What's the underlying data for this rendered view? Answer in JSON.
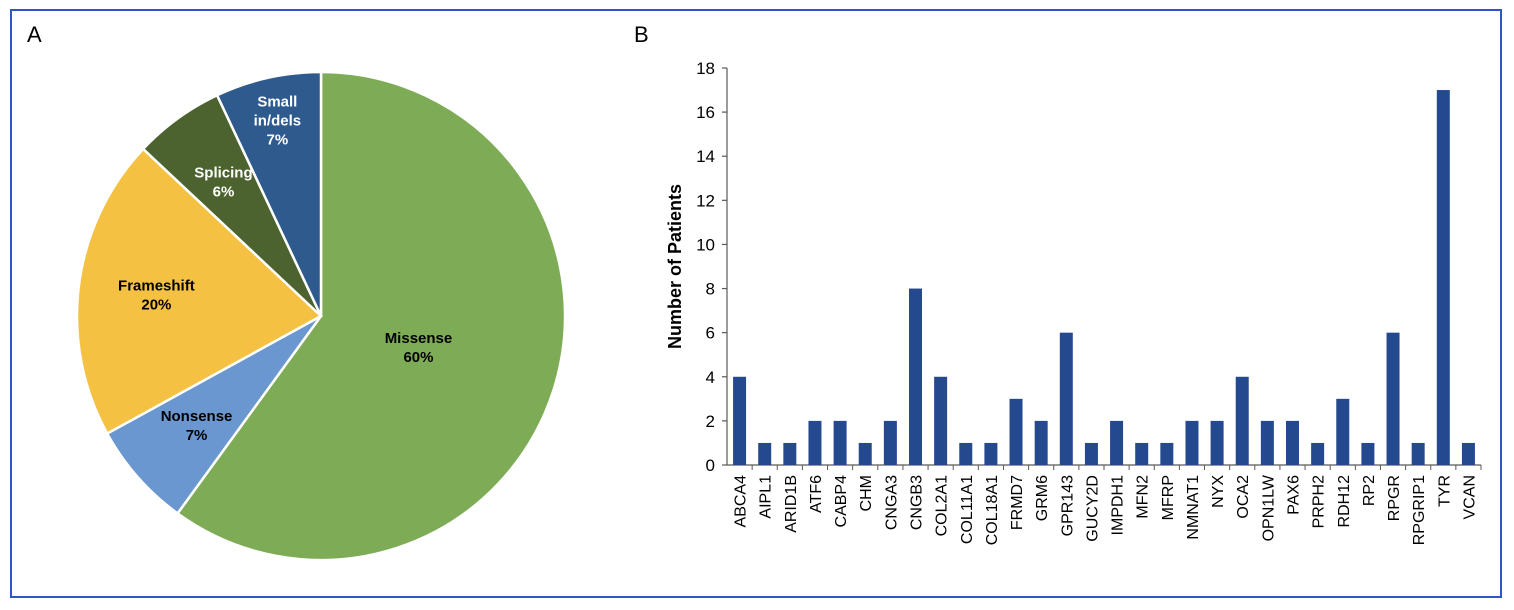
{
  "panels": {
    "a_label": "A",
    "b_label": "B"
  },
  "chart_data": [
    {
      "type": "pie",
      "slices": [
        {
          "label_lines": [
            "Missense",
            "60%"
          ],
          "value": 60,
          "color": "#7eab55",
          "text_color": "#000000"
        },
        {
          "label_lines": [
            "Nonsense",
            "7%"
          ],
          "value": 7,
          "color": "#6b97d1",
          "text_color": "#000000"
        },
        {
          "label_lines": [
            "Frameshift",
            "20%"
          ],
          "value": 20,
          "color": "#f5c142",
          "text_color": "#000000"
        },
        {
          "label_lines": [
            "Splicing",
            "6%"
          ],
          "value": 6,
          "color": "#4c632f",
          "text_color": "#ffffff"
        },
        {
          "label_lines": [
            "Small",
            "in/dels",
            "7%"
          ],
          "value": 7,
          "color": "#2e5a8e",
          "text_color": "#ffffff"
        }
      ],
      "start": "12 o'clock, clockwise",
      "border_color": "#ffffff"
    },
    {
      "type": "bar",
      "ylabel": "Number of Patients",
      "ylim": [
        0,
        18
      ],
      "yticks": [
        0,
        2,
        4,
        6,
        8,
        10,
        12,
        14,
        16,
        18
      ],
      "grid": false,
      "bar_color": "#24498f",
      "categories": [
        "ABCA4",
        "AIPL1",
        "ARID1B",
        "ATF6",
        "CABP4",
        "CHM",
        "CNGA3",
        "CNGB3",
        "COL2A1",
        "COL11A1",
        "COL18A1",
        "FRMD7",
        "GRM6",
        "GPR143",
        "GUCY2D",
        "IMPDH1",
        "MFN2",
        "MFRP",
        "NMNAT1",
        "NYX",
        "OCA2",
        "OPN1LW",
        "PAX6",
        "PRPH2",
        "RDH12",
        "RP2",
        "RPGR",
        "RPGRIP1",
        "TYR",
        "VCAN"
      ],
      "values": [
        4,
        1,
        1,
        2,
        2,
        1,
        2,
        8,
        4,
        1,
        1,
        3,
        2,
        6,
        1,
        2,
        1,
        1,
        2,
        2,
        4,
        2,
        2,
        1,
        3,
        1,
        6,
        1,
        17,
        1
      ]
    }
  ]
}
